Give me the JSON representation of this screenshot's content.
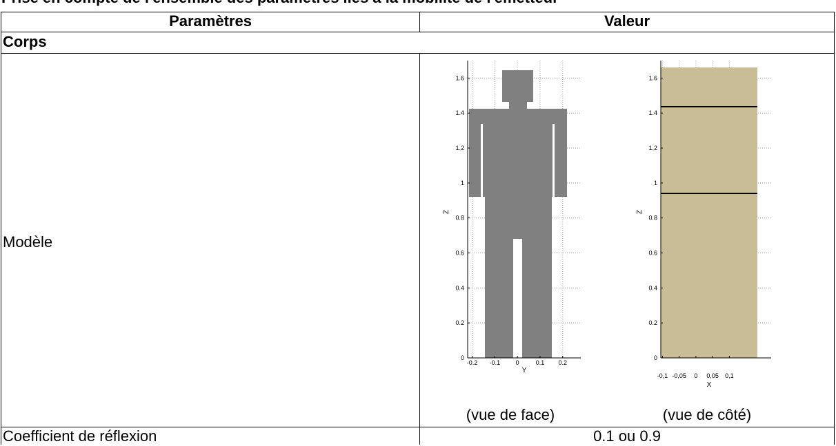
{
  "header": {
    "title": "Prise en compte de l'ensemble des paramètres liés à la mobilité de l'émetteur"
  },
  "table": {
    "columns": [
      "Paramètres",
      "Valeur"
    ],
    "section": "Corps",
    "rows": [
      {
        "label": "Modèle"
      },
      {
        "label": "Coefficient de réflexion",
        "value": "0.1 ou 0.9"
      }
    ]
  },
  "figures": [
    {
      "xlabel": "Y",
      "ylabel": "Z",
      "xlim": [
        -0.22,
        0.28
      ],
      "ylim": [
        0,
        1.7
      ],
      "xticks": [
        -0.2,
        -0.1,
        0,
        0.1,
        0.2
      ],
      "yticks": [
        0,
        0.2,
        0.4,
        0.6,
        0.8,
        1,
        1.2,
        1.4,
        1.6
      ],
      "grid": true,
      "color": "#808080",
      "caption": "(vue de face)"
    },
    {
      "xlabel": "X",
      "ylabel": "Z",
      "xlim": [
        -0.105,
        0.225
      ],
      "ylim": [
        0,
        1.7
      ],
      "xticks": [
        {
          "value": -0.1,
          "label": "-0,1"
        },
        {
          "value": -0.05,
          "label": "-0,05"
        },
        0,
        {
          "value": 0.05,
          "label": "0,05"
        },
        {
          "value": 0.1,
          "label": "0,1"
        }
      ],
      "yticks": [
        0,
        0.2,
        0.4,
        0.6,
        0.8,
        1,
        1.2,
        1.4,
        1.6
      ],
      "grid": true,
      "color": "#c8bd96",
      "caption": "(vue de côté)"
    }
  ]
}
